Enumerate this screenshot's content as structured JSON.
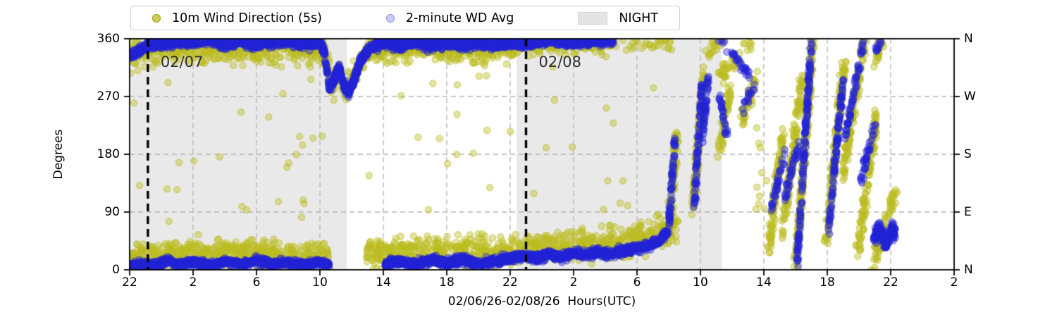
{
  "colors": {
    "background": "#ffffff",
    "scatter_yellow": "#bcbd22",
    "scatter_blue": "#2424d6",
    "night_fill": "#e9e9e9",
    "grid": "#b3b3b3",
    "axis": "#000000",
    "date_line": "#000000",
    "date_label": "#2e2e2e"
  },
  "legend": {
    "items": [
      {
        "label": "10m Wind Direction (5s)",
        "marker": "yellow-dot"
      },
      {
        "label": "2-minute WD Avg",
        "marker": "blue-dot"
      },
      {
        "label": "NIGHT",
        "marker": "gray-patch"
      }
    ]
  },
  "chart_data": {
    "type": "scatter",
    "title": "",
    "xlabel": "02/06/26-02/08/26  Hours(UTC)",
    "ylabel": "Degrees",
    "ylim": [
      0,
      360
    ],
    "x_span_hours": 52,
    "grid": "dashed",
    "legend_position": "top-left-outside",
    "xticks": {
      "hours": [
        0,
        4,
        8,
        12,
        16,
        20,
        24,
        28,
        32,
        36,
        40,
        44,
        48,
        52
      ],
      "labels": [
        "22",
        "2",
        "6",
        "10",
        "14",
        "18",
        "22",
        "2",
        "6",
        "10",
        "14",
        "18",
        "22",
        "2"
      ]
    },
    "yticks": {
      "values": [
        0,
        90,
        180,
        270,
        360
      ],
      "labels_left": [
        "0",
        "90",
        "180",
        "270",
        "360"
      ],
      "labels_right": [
        "N",
        "E",
        "S",
        "W",
        "N"
      ]
    },
    "night_regions_h": [
      [
        0.1,
        13.7
      ],
      [
        24.4,
        37.35
      ]
    ],
    "date_lines": [
      {
        "h": 1.15,
        "label": "02/07"
      },
      {
        "h": 25.0,
        "label": "02/08"
      }
    ],
    "series": [
      {
        "name": "10m Wind Direction (5s)",
        "color": "#bcbd22",
        "alpha": 0.42,
        "radius": 4.6,
        "bands": [
          {
            "h0": 0,
            "h1": 12.4,
            "spread": 26,
            "per_h": 45,
            "path": [
              [
                0,
                335
              ],
              [
                2,
                348
              ],
              [
                6,
                345
              ],
              [
                10,
                348
              ],
              [
                12.4,
                338
              ]
            ]
          },
          {
            "h0": 12.4,
            "h1": 14.8,
            "spread": 22,
            "per_h": 34,
            "path": [
              [
                12.4,
                330
              ],
              [
                12.8,
                285
              ],
              [
                13.2,
                310
              ],
              [
                13.6,
                280
              ],
              [
                14.1,
                300
              ],
              [
                14.8,
                335
              ]
            ]
          },
          {
            "h0": 14.8,
            "h1": 24.4,
            "spread": 24,
            "per_h": 45,
            "path": [
              [
                14.8,
                342
              ],
              [
                18,
                346
              ],
              [
                22,
                344
              ],
              [
                24.4,
                345
              ]
            ]
          },
          {
            "h0": 24.4,
            "h1": 30.5,
            "spread": 16,
            "per_h": 18,
            "path": [
              [
                24.4,
                346
              ],
              [
                27,
                350
              ],
              [
                30.5,
                350
              ]
            ]
          },
          {
            "h0": 30.5,
            "h1": 34.2,
            "spread": 12,
            "per_h": 9,
            "path": [
              [
                30.5,
                350
              ],
              [
                34.2,
                350
              ]
            ]
          },
          {
            "h0": 0,
            "h1": 12.6,
            "spread": 22,
            "per_h": 40,
            "path": [
              [
                0,
                18
              ],
              [
                3,
                25
              ],
              [
                6,
                28
              ],
              [
                9,
                25
              ],
              [
                12.6,
                20
              ]
            ]
          },
          {
            "h0": 14.9,
            "h1": 24.4,
            "spread": 25,
            "per_h": 40,
            "path": [
              [
                14.9,
                25
              ],
              [
                18,
                30
              ],
              [
                21,
                28
              ],
              [
                24.4,
                30
              ]
            ]
          },
          {
            "h0": 24.4,
            "h1": 33.0,
            "spread": 26,
            "per_h": 40,
            "path": [
              [
                24.4,
                32
              ],
              [
                27,
                35
              ],
              [
                30,
                40
              ],
              [
                33,
                55
              ]
            ]
          },
          {
            "h0": 33.0,
            "h1": 34.6,
            "spread": 30,
            "per_h": 28,
            "path": [
              [
                33,
                60
              ],
              [
                34.6,
                70
              ]
            ]
          }
        ],
        "streaks": [
          [
            34.0,
            40,
            34.5,
            210
          ],
          [
            35.5,
            80,
            36.2,
            300
          ],
          [
            36.2,
            330,
            37.3,
            360
          ],
          [
            37.2,
            300,
            39.3,
            360
          ],
          [
            37.2,
            180,
            37.8,
            280
          ],
          [
            38.6,
            230,
            39.5,
            300
          ],
          [
            40.3,
            30,
            41.2,
            220
          ],
          [
            41.2,
            60,
            42.4,
            300
          ],
          [
            42.0,
            0,
            43.1,
            360
          ],
          [
            43.9,
            40,
            45.1,
            330
          ],
          [
            45.0,
            150,
            46.4,
            360
          ],
          [
            45.9,
            20,
            47.1,
            240
          ],
          [
            46.8,
            0,
            48.4,
            130
          ],
          [
            47.0,
            320,
            47.5,
            360
          ]
        ],
        "outliers": [
          [
            0.2,
            12.4,
            70,
            300,
            26
          ],
          [
            14.9,
            24.3,
            70,
            310,
            16
          ],
          [
            24.5,
            34.0,
            85,
            330,
            14
          ],
          [
            39.3,
            40.3,
            60,
            330,
            10
          ]
        ]
      },
      {
        "name": "2-minute WD Avg",
        "color": "#2424d6",
        "alpha": 0.4,
        "radius": 4.8,
        "paths": [
          {
            "spread": 9,
            "per_h": 62,
            "path": [
              [
                0,
                332
              ],
              [
                0.6,
                342
              ],
              [
                1.2,
                350
              ],
              [
                2,
                352
              ],
              [
                3,
                356
              ],
              [
                4,
                354
              ],
              [
                5,
                357
              ],
              [
                6,
                352
              ],
              [
                7,
                356
              ],
              [
                8,
                351
              ],
              [
                9,
                355
              ],
              [
                10,
                357
              ],
              [
                11,
                352
              ],
              [
                12,
                354
              ],
              [
                12.3,
                338
              ],
              [
                12.6,
                282
              ],
              [
                12.9,
                296
              ],
              [
                13.2,
                316
              ],
              [
                13.5,
                288
              ],
              [
                13.8,
                274
              ],
              [
                14.1,
                292
              ],
              [
                14.5,
                322
              ],
              [
                15,
                342
              ],
              [
                15.5,
                350
              ],
              [
                16,
                354
              ],
              [
                17,
                350
              ],
              [
                18,
                355
              ],
              [
                19,
                349
              ],
              [
                20,
                354
              ],
              [
                21,
                351
              ],
              [
                22,
                355
              ],
              [
                23,
                350
              ],
              [
                24,
                353
              ]
            ]
          },
          {
            "spread": 7,
            "per_h": 45,
            "path": [
              [
                24,
                353
              ],
              [
                25,
                351
              ],
              [
                26,
                354
              ],
              [
                27,
                356
              ],
              [
                28,
                352
              ],
              [
                29,
                355
              ],
              [
                30,
                357
              ],
              [
                30.5,
                356
              ]
            ]
          },
          {
            "spread": 7,
            "per_h": 48,
            "path": [
              [
                0,
                4
              ],
              [
                0.8,
                10
              ],
              [
                1.6,
                6
              ],
              [
                2.4,
                14
              ],
              [
                3.2,
                8
              ],
              [
                4,
                12
              ],
              [
                5,
                7
              ],
              [
                6,
                13
              ],
              [
                7,
                9
              ],
              [
                8,
                15
              ],
              [
                9,
                8
              ],
              [
                10,
                12
              ],
              [
                11,
                7
              ],
              [
                12,
                12
              ],
              [
                12.6,
                8
              ]
            ]
          },
          {
            "spread": 8,
            "per_h": 52,
            "path": [
              [
                16.1,
                8
              ],
              [
                17,
                14
              ],
              [
                18,
                7
              ],
              [
                19,
                16
              ],
              [
                20,
                10
              ],
              [
                21,
                16
              ],
              [
                22,
                9
              ],
              [
                23,
                14
              ],
              [
                24,
                18
              ],
              [
                24.8,
                22
              ],
              [
                25.6,
                18
              ],
              [
                26.4,
                25
              ],
              [
                27.2,
                20
              ],
              [
                28,
                26
              ],
              [
                28.8,
                22
              ],
              [
                29.6,
                28
              ],
              [
                30.4,
                24
              ],
              [
                31.2,
                30
              ],
              [
                32,
                34
              ],
              [
                32.8,
                38
              ],
              [
                33.4,
                46
              ],
              [
                33.9,
                58
              ]
            ]
          },
          {
            "spread": 16,
            "per_h": 62,
            "path": [
              [
                46.9,
                48
              ],
              [
                47.3,
                62
              ],
              [
                47.7,
                40
              ],
              [
                48.1,
                66
              ],
              [
                48.3,
                55
              ]
            ]
          }
        ],
        "streaks": [
          [
            34.0,
            62,
            34.4,
            205
          ],
          [
            35.6,
            95,
            36.1,
            290
          ],
          [
            36.1,
            200,
            36.5,
            300
          ],
          [
            37.2,
            360,
            39.2,
            300
          ],
          [
            37.2,
            270,
            37.7,
            205
          ],
          [
            38.7,
            252,
            39.4,
            288
          ],
          [
            40.5,
            95,
            41.3,
            180
          ],
          [
            41.3,
            110,
            42.3,
            205
          ],
          [
            42.1,
            10,
            43.0,
            355
          ],
          [
            44.1,
            65,
            45.0,
            300
          ],
          [
            45.1,
            205,
            46.3,
            355
          ],
          [
            46.1,
            135,
            47.0,
            228
          ],
          [
            47.0,
            332,
            47.4,
            360
          ]
        ]
      }
    ]
  }
}
